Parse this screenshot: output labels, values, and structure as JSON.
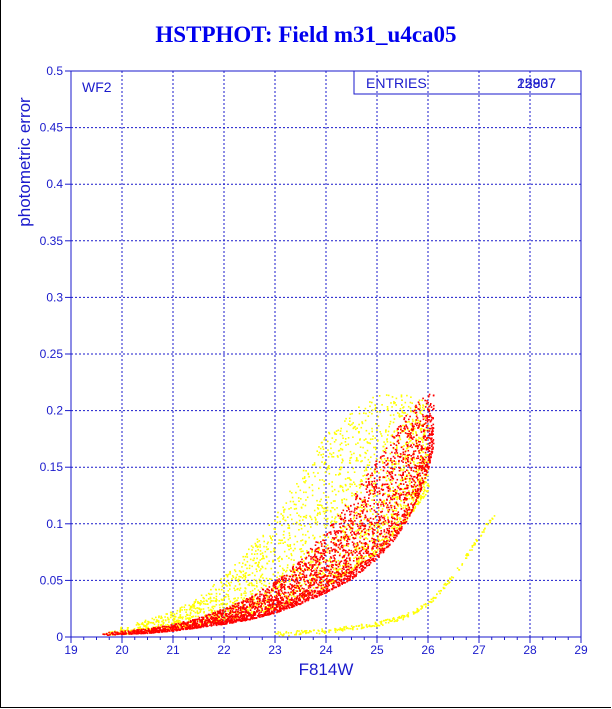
{
  "title": "HSTPHOT: Field m31_u4ca05",
  "colors": {
    "axis": "#1a1acc",
    "title": "#0000ee",
    "series_red": "#ee0000",
    "series_yellow": "#ffff00"
  },
  "chart_data": {
    "type": "scatter",
    "title": "HSTPHOT: Field m31_u4ca05",
    "xlabel": "F814W",
    "ylabel": "photometric error",
    "xlim": [
      19,
      29
    ],
    "ylim": [
      0,
      0.5
    ],
    "xticks": [
      "19",
      "20",
      "21",
      "22",
      "23",
      "24",
      "25",
      "26",
      "27",
      "28",
      "29"
    ],
    "yticks": [
      "0",
      "0.05",
      "0.1",
      "0.15",
      "0.2",
      "0.25",
      "0.3",
      "0.35",
      "0.4",
      "0.45",
      "0.5"
    ],
    "grid": true,
    "panel_label": "WF2",
    "stats_box": {
      "label": "ENTRIES",
      "values": [
        "12837",
        "25907"
      ]
    },
    "series": [
      {
        "color": "#ff0000",
        "x": [
          19.6,
          20.0,
          20.5,
          21.0,
          21.5,
          22.0,
          22.5,
          23.0,
          23.5,
          24.0,
          24.5,
          25.0,
          25.3,
          25.6,
          25.8,
          26.0,
          26.1
        ],
        "y_lower": [
          0.002,
          0.003,
          0.004,
          0.006,
          0.009,
          0.012,
          0.016,
          0.022,
          0.03,
          0.04,
          0.052,
          0.07,
          0.085,
          0.105,
          0.125,
          0.15,
          0.17
        ],
        "y_upper": [
          0.004,
          0.006,
          0.008,
          0.012,
          0.018,
          0.026,
          0.036,
          0.05,
          0.07,
          0.095,
          0.125,
          0.16,
          0.18,
          0.2,
          0.21,
          0.215,
          0.215
        ]
      },
      {
        "color": "#ffff00",
        "x": [
          19.6,
          20.0,
          20.5,
          21.0,
          21.5,
          22.0,
          22.5,
          23.0,
          23.5,
          24.0,
          24.5,
          25.0,
          25.5,
          26.0
        ],
        "y_lower": [
          0.002,
          0.003,
          0.005,
          0.008,
          0.011,
          0.015,
          0.02,
          0.026,
          0.034,
          0.045,
          0.06,
          0.075,
          0.1,
          0.13
        ],
        "y_upper": [
          0.006,
          0.01,
          0.016,
          0.024,
          0.036,
          0.055,
          0.08,
          0.11,
          0.145,
          0.18,
          0.2,
          0.215,
          0.215,
          0.21
        ]
      },
      {
        "color": "#ffff00",
        "x": [
          23.0,
          24.0,
          25.0,
          25.5,
          26.0,
          26.5,
          27.0,
          27.3
        ],
        "y": [
          0.003,
          0.006,
          0.012,
          0.018,
          0.03,
          0.055,
          0.09,
          0.11
        ]
      }
    ]
  }
}
